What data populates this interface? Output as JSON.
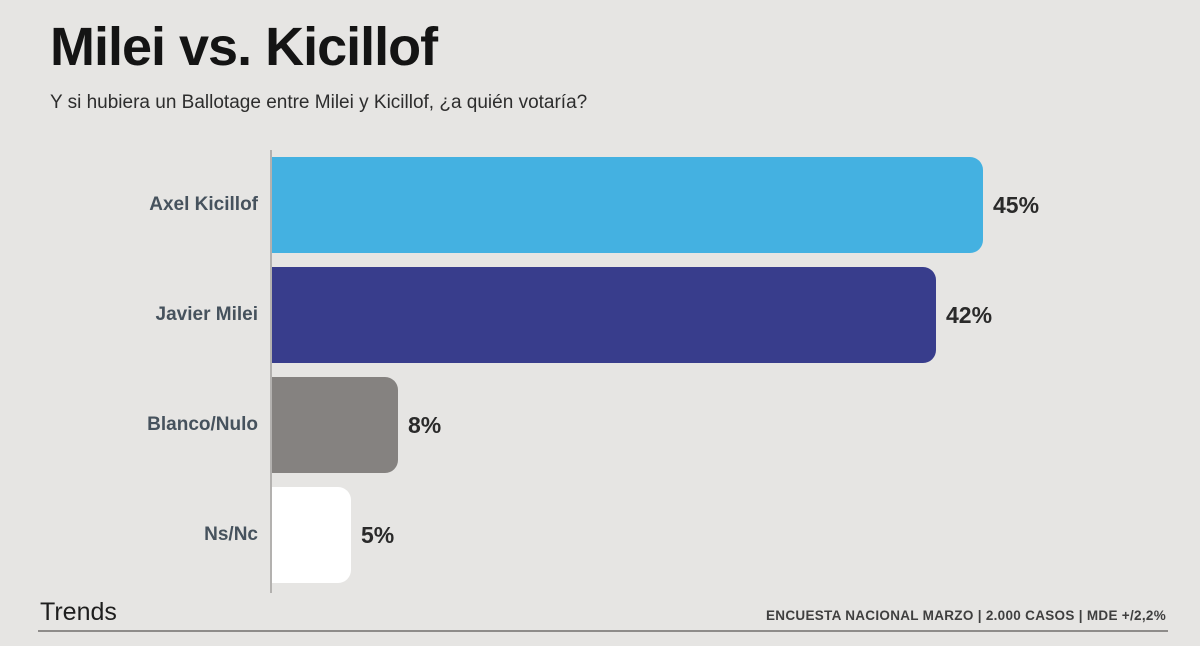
{
  "header": {
    "title": "Milei vs. Kicillof",
    "subtitle": "Y si hubiera un Ballotage entre Milei y Kicillof, ¿a quién votaría?"
  },
  "chart_data": {
    "type": "bar",
    "orientation": "horizontal",
    "title": "Milei vs. Kicillof",
    "question": "Y si hubiera un Ballotage entre Milei y Kicillof, ¿a quién votaría?",
    "categories": [
      "Axel Kicillof",
      "Javier Milei",
      "Blanco/Nulo",
      "Ns/Nc"
    ],
    "values": [
      45,
      42,
      8,
      5
    ],
    "value_labels": [
      "45%",
      "42%",
      "8%",
      "5%"
    ],
    "bar_colors": [
      "#44b1e1",
      "#383d8c",
      "#858280",
      "#ffffff"
    ],
    "xlim": [
      0,
      100
    ],
    "grid": false,
    "legend": false,
    "axis_color": "#b3b1af"
  },
  "footer": {
    "brand": "Trends",
    "source": "ENCUESTA NACIONAL MARZO | 2.000 CASOS | MDE +/2,2%"
  },
  "colors": {
    "background": "#e6e5e3",
    "title": "#141414",
    "subtitle": "#2d2d2d",
    "category_label": "#46525d",
    "value_label": "#2a2a2a",
    "divider": "#8e8c8a"
  }
}
